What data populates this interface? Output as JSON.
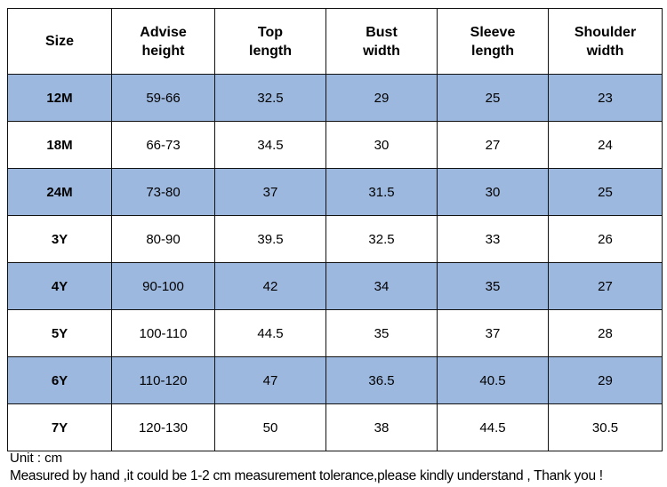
{
  "table": {
    "columns": [
      {
        "lines": [
          "Size"
        ]
      },
      {
        "lines": [
          "Advise",
          "height"
        ]
      },
      {
        "lines": [
          "Top",
          "length"
        ]
      },
      {
        "lines": [
          "Bust",
          "width"
        ]
      },
      {
        "lines": [
          "Sleeve",
          "length"
        ]
      },
      {
        "lines": [
          "Shoulder",
          "width"
        ]
      }
    ],
    "row_colors": {
      "shaded": "#9db8df",
      "plain": "#ffffff"
    },
    "rows": [
      {
        "shaded": true,
        "cells": [
          "12M",
          "59-66",
          "32.5",
          "29",
          "25",
          "23"
        ]
      },
      {
        "shaded": false,
        "cells": [
          "18M",
          "66-73",
          "34.5",
          "30",
          "27",
          "24"
        ]
      },
      {
        "shaded": true,
        "cells": [
          "24M",
          "73-80",
          "37",
          "31.5",
          "30",
          "25"
        ]
      },
      {
        "shaded": false,
        "cells": [
          "3Y",
          "80-90",
          "39.5",
          "32.5",
          "33",
          "26"
        ]
      },
      {
        "shaded": true,
        "cells": [
          "4Y",
          "90-100",
          "42",
          "34",
          "35",
          "27"
        ]
      },
      {
        "shaded": false,
        "cells": [
          "5Y",
          "100-110",
          "44.5",
          "35",
          "37",
          "28"
        ]
      },
      {
        "shaded": true,
        "cells": [
          "6Y",
          "110-120",
          "47",
          "36.5",
          "40.5",
          "29"
        ]
      },
      {
        "shaded": false,
        "cells": [
          "7Y",
          "120-130",
          "50",
          "38",
          "44.5",
          "30.5"
        ]
      }
    ]
  },
  "notes": {
    "unit": "Unit : cm",
    "tolerance": "Measured by hand ,it could be 1-2 cm measurement tolerance,please kindly understand , Thank you !"
  }
}
